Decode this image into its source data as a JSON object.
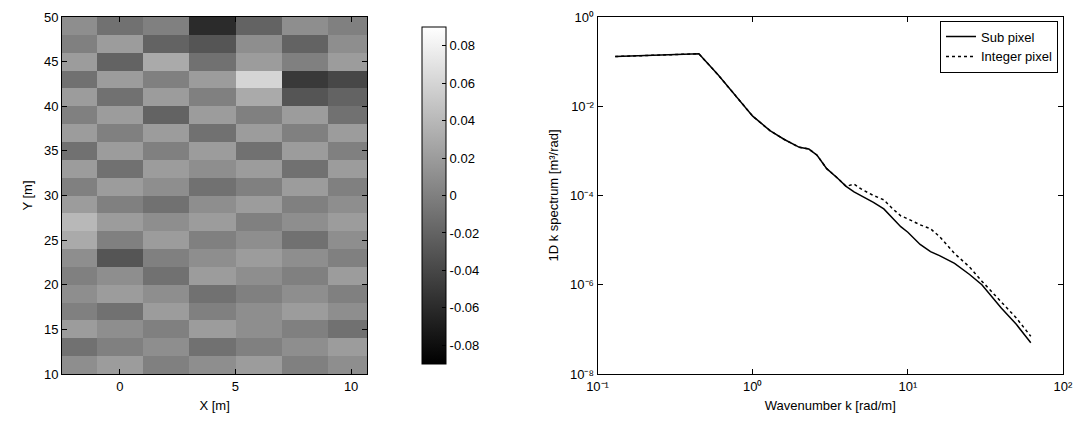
{
  "chart_data": [
    {
      "type": "heatmap",
      "xlabel": "X [m]",
      "ylabel": "Y [m]",
      "color": "gray",
      "x": [
        -2,
        0,
        2,
        4,
        6,
        8,
        10
      ],
      "y": [
        11,
        13,
        15,
        17,
        19,
        21,
        23,
        25,
        27,
        29,
        31,
        33,
        35,
        37,
        39,
        41,
        43,
        45,
        47,
        49
      ],
      "cells": [
        [
          0.01,
          0.02,
          0.0,
          0.01,
          0.02,
          0.0,
          0.01
        ],
        [
          -0.01,
          0.0,
          0.01,
          -0.01,
          0.0,
          0.01,
          0.02
        ],
        [
          0.02,
          0.01,
          0.0,
          0.02,
          0.01,
          0.0,
          -0.01
        ],
        [
          0.0,
          -0.01,
          0.02,
          0.0,
          0.01,
          0.02,
          0.01
        ],
        [
          0.01,
          0.02,
          0.01,
          -0.01,
          0.0,
          0.01,
          0.0
        ],
        [
          0.0,
          0.01,
          -0.01,
          0.02,
          0.01,
          0.0,
          0.02
        ],
        [
          0.01,
          -0.03,
          0.0,
          0.01,
          0.02,
          0.01,
          0.0
        ],
        [
          0.03,
          0.0,
          0.02,
          0.0,
          0.01,
          -0.01,
          0.01
        ],
        [
          0.04,
          0.02,
          0.01,
          0.02,
          0.0,
          0.01,
          0.02
        ],
        [
          0.02,
          0.0,
          -0.01,
          0.01,
          0.02,
          0.0,
          0.01
        ],
        [
          0.0,
          0.02,
          0.01,
          -0.01,
          0.0,
          0.02,
          0.0
        ],
        [
          0.02,
          -0.01,
          0.02,
          0.01,
          0.02,
          -0.01,
          0.02
        ],
        [
          -0.01,
          0.02,
          0.0,
          0.02,
          -0.01,
          0.02,
          0.0
        ],
        [
          0.02,
          0.0,
          0.02,
          -0.01,
          0.02,
          0.0,
          0.02
        ],
        [
          0.0,
          0.02,
          -0.02,
          0.02,
          0.0,
          0.02,
          -0.01
        ],
        [
          0.02,
          -0.01,
          0.02,
          0.0,
          0.03,
          -0.03,
          -0.02
        ],
        [
          -0.01,
          0.02,
          0.0,
          0.02,
          0.06,
          -0.05,
          -0.04
        ],
        [
          0.02,
          -0.02,
          0.03,
          -0.01,
          0.02,
          0.0,
          0.02
        ],
        [
          0.0,
          0.02,
          -0.02,
          -0.03,
          0.01,
          -0.02,
          0.01
        ],
        [
          0.01,
          -0.01,
          0.0,
          -0.06,
          -0.02,
          0.01,
          0.0
        ]
      ],
      "xlim": [
        -2.5,
        10.7
      ],
      "ylim": [
        10,
        50
      ],
      "xticks": [
        0,
        5,
        10
      ],
      "yticks": [
        10,
        15,
        20,
        25,
        30,
        35,
        40,
        45,
        50
      ],
      "zlim": [
        -0.09,
        0.09
      ],
      "zticks": [
        -0.08,
        -0.06,
        -0.04,
        -0.02,
        0,
        0.02,
        0.04,
        0.06,
        0.08
      ]
    },
    {
      "type": "line",
      "xlabel": "Wavenumber k [rad/m]",
      "ylabel": "1D k spectrum [m³/rad]",
      "log": true,
      "grid": false,
      "legend": "upper right",
      "x": [
        0.13,
        0.2,
        0.3,
        0.45,
        0.6,
        0.8,
        1.0,
        1.3,
        1.6,
        2.0,
        2.3,
        2.6,
        3.0,
        3.5,
        4.0,
        4.5,
        5,
        6,
        7,
        8,
        9,
        10,
        12,
        14,
        16,
        20,
        25,
        30,
        40,
        50,
        62
      ],
      "series": [
        {
          "name": "Sub pixel",
          "color": "#000000",
          "line_style": "solid",
          "values": [
            0.13,
            0.135,
            0.14,
            0.15,
            0.05,
            0.015,
            0.006,
            0.0028,
            0.0018,
            0.0012,
            0.0011,
            0.0008,
            0.0004,
            0.00025,
            0.00016,
            0.00012,
            0.0001,
            7e-05,
            5e-05,
            3e-05,
            2e-05,
            1.5e-05,
            8e-06,
            5.5e-06,
            4.5e-06,
            3e-06,
            1.7e-06,
            1e-06,
            3e-07,
            1.3e-07,
            5e-08
          ]
        },
        {
          "name": "Integer pixel",
          "color": "#000000",
          "line_style": "dotted",
          "values": [
            0.13,
            0.135,
            0.14,
            0.15,
            0.05,
            0.015,
            0.006,
            0.0028,
            0.0018,
            0.0012,
            0.0011,
            0.0008,
            0.0004,
            0.00025,
            0.00016,
            0.00018,
            0.00014,
            0.0001,
            8e-05,
            5e-05,
            3.5e-05,
            3e-05,
            2.2e-05,
            1.8e-05,
            1.2e-05,
            5e-06,
            2.5e-06,
            1.2e-06,
            4e-07,
            1.8e-07,
            7e-08
          ]
        }
      ],
      "xlim": [
        0.1,
        100
      ],
      "ylim": [
        1e-08,
        1
      ],
      "xticks": [
        {
          "value": 0.1,
          "label": "10⁻¹"
        },
        {
          "value": 1,
          "label": "10⁰"
        },
        {
          "value": 10,
          "label": "10¹"
        },
        {
          "value": 100,
          "label": "10²"
        }
      ],
      "yticks": [
        {
          "value": 1e-08,
          "label": "10⁻⁸"
        },
        {
          "value": 1e-06,
          "label": "10⁻⁶"
        },
        {
          "value": 0.0001,
          "label": "10⁻⁴"
        },
        {
          "value": 0.01,
          "label": "10⁻²"
        },
        {
          "value": 1,
          "label": "10⁰"
        }
      ]
    }
  ]
}
